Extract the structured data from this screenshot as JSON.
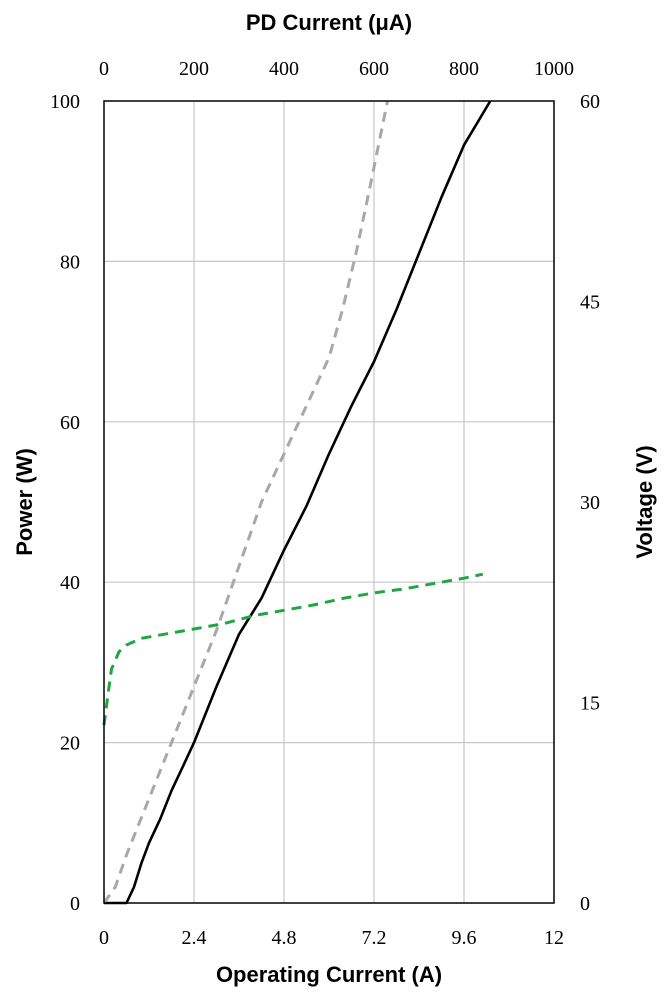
{
  "chart_data": {
    "type": "line",
    "title": "",
    "xlabel": "Operating Current (A)",
    "x2label": "PD Current (μA)",
    "ylabel": "Power (W)",
    "y2label": "Voltage (V)",
    "xlim": [
      0,
      12
    ],
    "x2lim": [
      0,
      1000
    ],
    "ylim": [
      0,
      100
    ],
    "y2lim": [
      0,
      60
    ],
    "xticks": [
      "0",
      "2.4",
      "4.8",
      "7.2",
      "9.6",
      "12"
    ],
    "x2ticks": [
      "0",
      "200",
      "400",
      "600",
      "800",
      "1000"
    ],
    "yticks": [
      "0",
      "20",
      "40",
      "60",
      "80",
      "100"
    ],
    "y2ticks": [
      "0",
      "15",
      "30",
      "45",
      "60"
    ],
    "grid": true,
    "series": [
      {
        "axis": "bottom-left",
        "color": "#000000",
        "style": "solid",
        "x": [
          0.0,
          0.6,
          0.8,
          1.0,
          1.2,
          1.5,
          1.8,
          2.1,
          2.4,
          3.0,
          3.6,
          4.2,
          4.8,
          5.4,
          6.0,
          6.6,
          7.2,
          7.8,
          8.4,
          9.0,
          9.6,
          10.3
        ],
        "y": [
          0,
          0,
          2,
          5,
          7.5,
          10.5,
          14,
          17,
          20,
          27,
          33.5,
          38,
          44,
          49.5,
          56,
          62,
          67.5,
          74,
          81,
          88,
          94.5,
          100
        ]
      },
      {
        "axis": "top-left",
        "color": "#a8a8a8",
        "style": "dashed",
        "x": [
          0,
          25,
          50,
          100,
          150,
          200,
          250,
          300,
          350,
          400,
          450,
          500,
          530,
          560,
          590,
          630
        ],
        "y": [
          0,
          2,
          6,
          13,
          20,
          27,
          34,
          42,
          50,
          56,
          62,
          68,
          74,
          81,
          89,
          100
        ]
      },
      {
        "axis": "bottom-right",
        "color": "#1fa640",
        "style": "dashed",
        "x": [
          0.0,
          0.1,
          0.2,
          0.4,
          0.6,
          1.0,
          1.6,
          2.4,
          3.2,
          4.0,
          4.8,
          5.6,
          6.4,
          7.2,
          8.0,
          8.8,
          9.6,
          10.1
        ],
        "y": [
          13.3,
          15.5,
          17.5,
          18.8,
          19.3,
          19.8,
          20.1,
          20.5,
          20.9,
          21.5,
          21.9,
          22.3,
          22.8,
          23.2,
          23.5,
          23.9,
          24.3,
          24.6
        ]
      }
    ]
  }
}
